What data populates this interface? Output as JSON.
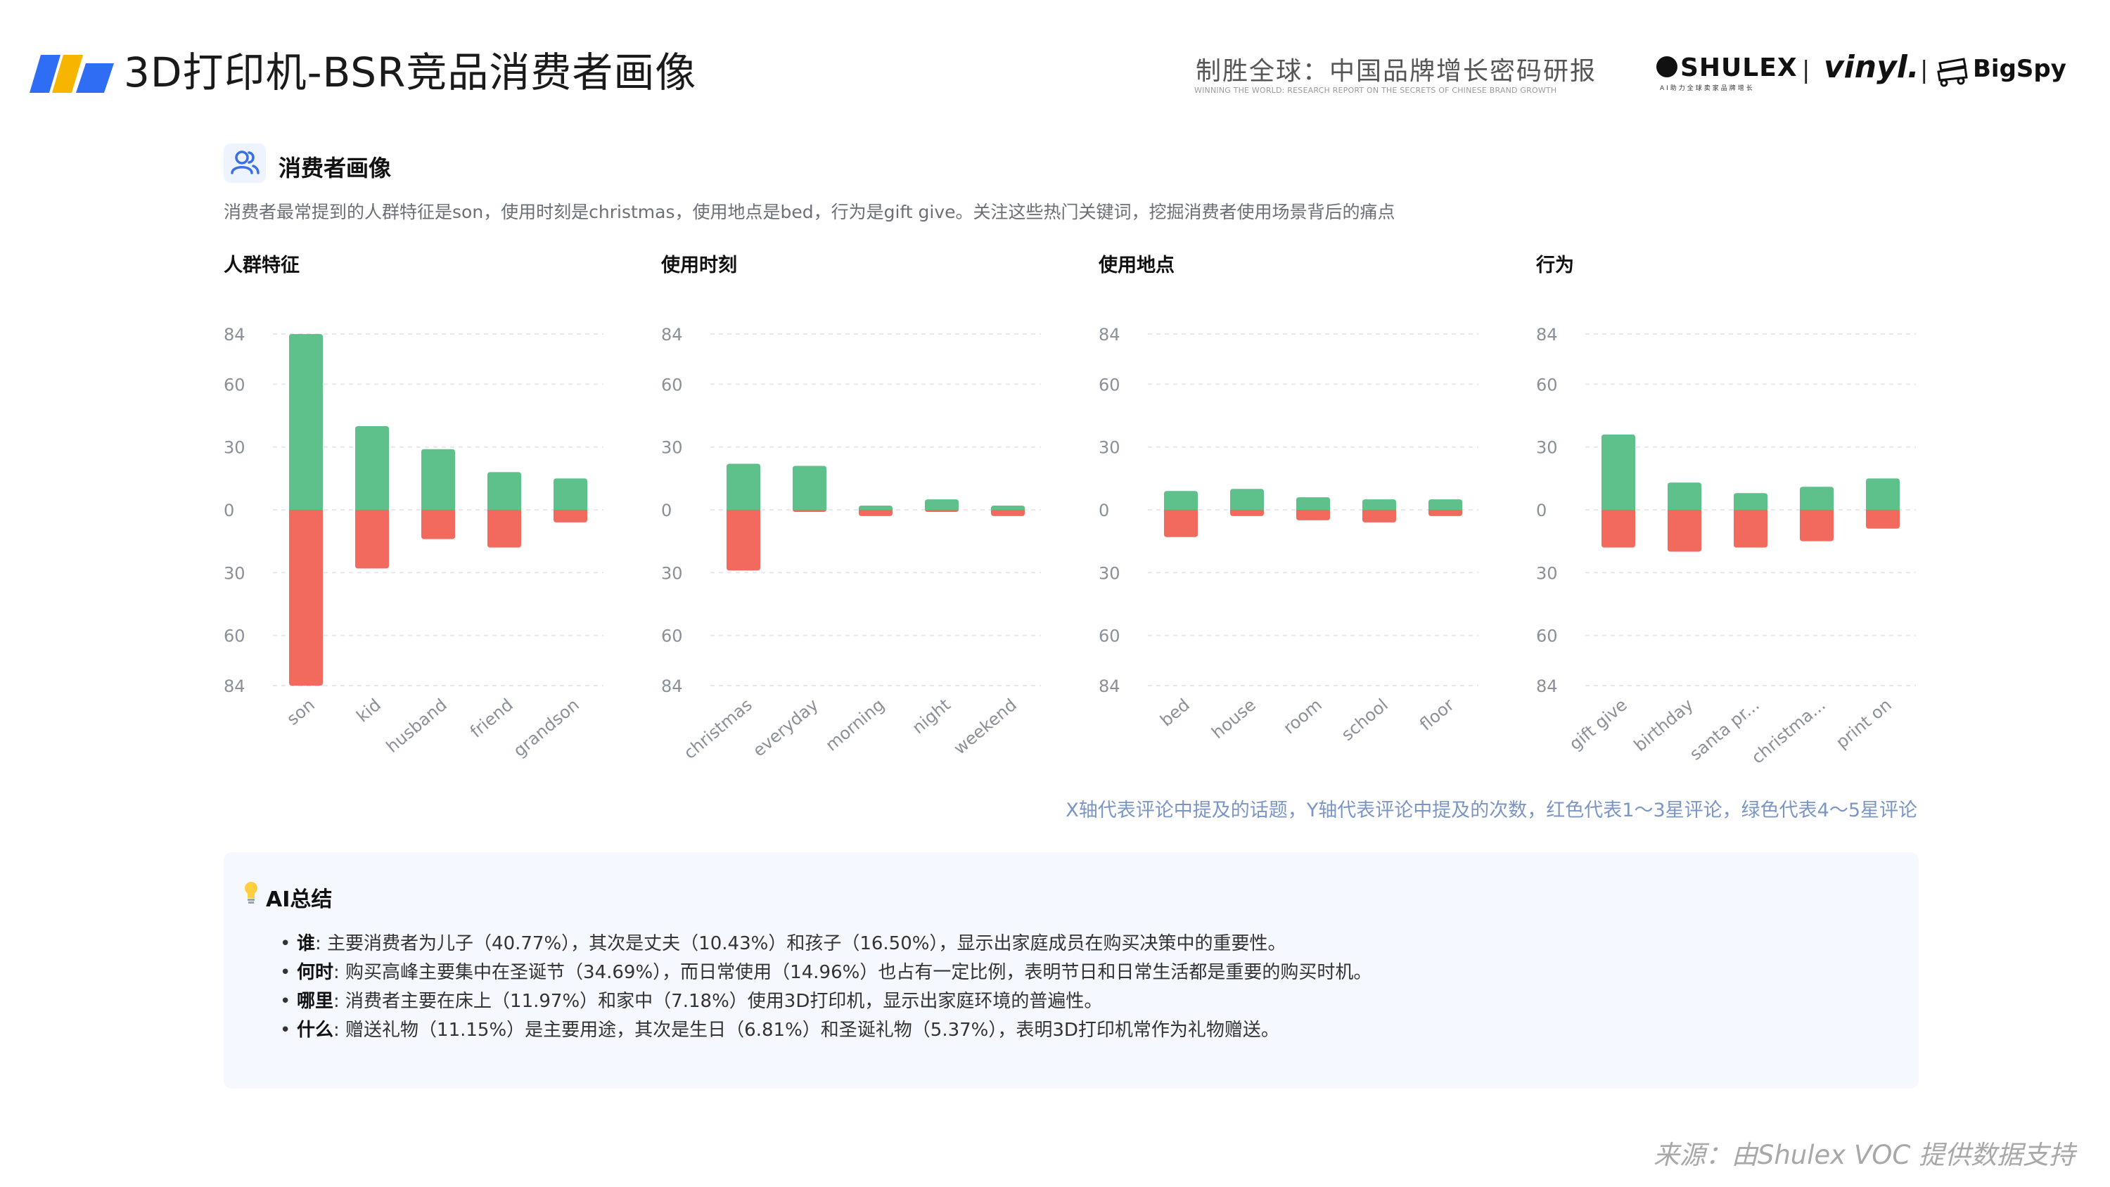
{
  "header": {
    "title": "3D打印机-BSR竞品消费者画像",
    "report_title": "制胜全球：中国品牌增长密码研报",
    "report_subtitle": "WINNING THE WORLD: RESEARCH REPORT ON THE SECRETS OF CHINESE BRAND GROWTH",
    "brand_shulex": "SHULEX",
    "brand_shulex_sub": "AI助力全球卖家品牌增长",
    "brand_separator": "|",
    "brand_vinyl": "vinyl.",
    "brand_bigspy": "BigSpy"
  },
  "section": {
    "title": "消费者画像",
    "description": "消费者最常提到的人群特征是son，使用时刻是christmas，使用地点是bed，行为是gift give。关注这些热门关键词，挖掘消费者使用场景背后的痛点"
  },
  "colors": {
    "positive": "#5ec08a",
    "negative": "#f26a5e",
    "footnote": "#7b95c4",
    "summary_bg": "#f5f8fe"
  },
  "chart_data": [
    {
      "type": "bar",
      "title": "人群特征",
      "categories": [
        "son",
        "kid",
        "husband",
        "friend",
        "grandson"
      ],
      "series": [
        {
          "name": "绿色代表4～5星评论",
          "values": [
            84,
            40,
            29,
            18,
            15
          ]
        },
        {
          "name": "红色代表1～3星评论",
          "values": [
            -84,
            -28,
            -14,
            -18,
            -6
          ]
        }
      ],
      "y_ticks": [
        "84",
        "60",
        "30",
        "0",
        "30",
        "60",
        "84"
      ],
      "ylim": [
        -84,
        84
      ]
    },
    {
      "type": "bar",
      "title": "使用时刻",
      "categories": [
        "christmas",
        "everyday",
        "morning",
        "night",
        "weekend"
      ],
      "series": [
        {
          "name": "绿色代表4～5星评论",
          "values": [
            22,
            21,
            2,
            5,
            2
          ]
        },
        {
          "name": "红色代表1～3星评论",
          "values": [
            -29,
            -1,
            -3,
            -1,
            -3
          ]
        }
      ],
      "y_ticks": [
        "84",
        "60",
        "30",
        "0",
        "30",
        "60",
        "84"
      ],
      "ylim": [
        -84,
        84
      ]
    },
    {
      "type": "bar",
      "title": "使用地点",
      "categories": [
        "bed",
        "house",
        "room",
        "school",
        "floor"
      ],
      "series": [
        {
          "name": "绿色代表4～5星评论",
          "values": [
            9,
            10,
            6,
            5,
            5
          ]
        },
        {
          "name": "红色代表1～3星评论",
          "values": [
            -13,
            -3,
            -5,
            -6,
            -3
          ]
        }
      ],
      "y_ticks": [
        "84",
        "60",
        "30",
        "0",
        "30",
        "60",
        "84"
      ],
      "ylim": [
        -84,
        84
      ]
    },
    {
      "type": "bar",
      "title": "行为",
      "categories": [
        "gift give",
        "birthday",
        "santa pr...",
        "christma...",
        "print on"
      ],
      "series": [
        {
          "name": "绿色代表4～5星评论",
          "values": [
            36,
            13,
            8,
            11,
            15
          ]
        },
        {
          "name": "红色代表1～3星评论",
          "values": [
            -18,
            -20,
            -18,
            -15,
            -9
          ]
        }
      ],
      "y_ticks": [
        "84",
        "60",
        "30",
        "0",
        "30",
        "60",
        "84"
      ],
      "ylim": [
        -84,
        84
      ]
    }
  ],
  "footnote": "X轴代表评论中提及的话题，Y轴代表评论中提及的次数，红色代表1～3星评论，绿色代表4～5星评论",
  "summary": {
    "title": "AI总结",
    "items": [
      {
        "key": "谁",
        "text": ": 主要消费者为儿子（40.77%），其次是丈夫（10.43%）和孩子（16.50%），显示出家庭成员在购买决策中的重要性。"
      },
      {
        "key": "何时",
        "text": ": 购买高峰主要集中在圣诞节（34.69%），而日常使用（14.96%）也占有一定比例，表明节日和日常生活都是重要的购买时机。"
      },
      {
        "key": "哪里",
        "text": ": 消费者主要在床上（11.97%）和家中（7.18%）使用3D打印机，显示出家庭环境的普遍性。"
      },
      {
        "key": "什么",
        "text": ": 赠送礼物（11.15%）是主要用途，其次是生日（6.81%）和圣诞礼物（5.37%），表明3D打印机常作为礼物赠送。"
      }
    ]
  },
  "source": "来源：由Shulex VOC 提供数据支持"
}
